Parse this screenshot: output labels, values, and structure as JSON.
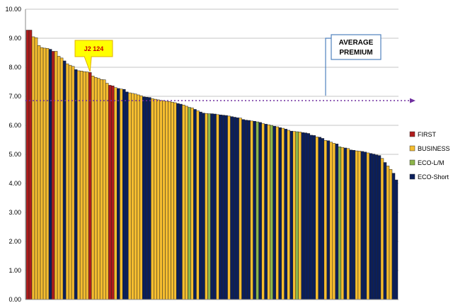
{
  "chart_data": {
    "type": "bar",
    "title": "",
    "xlabel": "",
    "ylabel": "",
    "ylim": [
      0,
      10
    ],
    "yticks": [
      "0.00",
      "1.00",
      "2.00",
      "3.00",
      "4.00",
      "5.00",
      "6.00",
      "7.00",
      "8.00",
      "9.00",
      "10.00"
    ],
    "grid": true,
    "legend_position": "right",
    "colors": {
      "FIRST": "#b01c1c",
      "BUSINESS": "#f5bd2f",
      "ECO-L/M": "#8db54a",
      "ECO-Short": "#0b1f5c"
    },
    "series": [
      {
        "name": "FIRST"
      },
      {
        "name": "BUSINESS"
      },
      {
        "name": "ECO-L/M"
      },
      {
        "name": "ECO-Short"
      }
    ],
    "bars": [
      {
        "value": 9.28,
        "class": "FIRST"
      },
      {
        "value": 9.28,
        "class": "FIRST"
      },
      {
        "value": 9.05,
        "class": "BUSINESS"
      },
      {
        "value": 9.02,
        "class": "BUSINESS"
      },
      {
        "value": 8.75,
        "class": "BUSINESS"
      },
      {
        "value": 8.68,
        "class": "BUSINESS"
      },
      {
        "value": 8.66,
        "class": "BUSINESS"
      },
      {
        "value": 8.65,
        "class": "BUSINESS"
      },
      {
        "value": 8.62,
        "class": "ECO-Short"
      },
      {
        "value": 8.55,
        "class": "FIRST"
      },
      {
        "value": 8.55,
        "class": "BUSINESS"
      },
      {
        "value": 8.38,
        "class": "BUSINESS"
      },
      {
        "value": 8.32,
        "class": "BUSINESS"
      },
      {
        "value": 8.22,
        "class": "ECO-Short"
      },
      {
        "value": 8.12,
        "class": "BUSINESS"
      },
      {
        "value": 8.07,
        "class": "BUSINESS"
      },
      {
        "value": 8.03,
        "class": "BUSINESS"
      },
      {
        "value": 7.92,
        "class": "ECO-Short"
      },
      {
        "value": 7.88,
        "class": "BUSINESS"
      },
      {
        "value": 7.87,
        "class": "BUSINESS"
      },
      {
        "value": 7.85,
        "class": "BUSINESS"
      },
      {
        "value": 7.84,
        "class": "BUSINESS"
      },
      {
        "value": 7.82,
        "class": "FIRST"
      },
      {
        "value": 7.7,
        "class": "BUSINESS"
      },
      {
        "value": 7.65,
        "class": "BUSINESS"
      },
      {
        "value": 7.62,
        "class": "BUSINESS"
      },
      {
        "value": 7.58,
        "class": "BUSINESS"
      },
      {
        "value": 7.57,
        "class": "BUSINESS"
      },
      {
        "value": 7.45,
        "class": "BUSINESS"
      },
      {
        "value": 7.38,
        "class": "FIRST"
      },
      {
        "value": 7.36,
        "class": "FIRST"
      },
      {
        "value": 7.3,
        "class": "BUSINESS"
      },
      {
        "value": 7.27,
        "class": "ECO-Short"
      },
      {
        "value": 7.25,
        "class": "BUSINESS"
      },
      {
        "value": 7.24,
        "class": "ECO-Short"
      },
      {
        "value": 7.15,
        "class": "ECO-Short"
      },
      {
        "value": 7.12,
        "class": "BUSINESS"
      },
      {
        "value": 7.1,
        "class": "BUSINESS"
      },
      {
        "value": 7.08,
        "class": "BUSINESS"
      },
      {
        "value": 7.05,
        "class": "BUSINESS"
      },
      {
        "value": 7.02,
        "class": "BUSINESS"
      },
      {
        "value": 6.98,
        "class": "ECO-Short"
      },
      {
        "value": 6.97,
        "class": "ECO-Short"
      },
      {
        "value": 6.96,
        "class": "ECO-Short"
      },
      {
        "value": 6.92,
        "class": "BUSINESS"
      },
      {
        "value": 6.9,
        "class": "BUSINESS"
      },
      {
        "value": 6.88,
        "class": "BUSINESS"
      },
      {
        "value": 6.86,
        "class": "BUSINESS"
      },
      {
        "value": 6.85,
        "class": "BUSINESS"
      },
      {
        "value": 6.83,
        "class": "BUSINESS"
      },
      {
        "value": 6.82,
        "class": "BUSINESS"
      },
      {
        "value": 6.8,
        "class": "BUSINESS"
      },
      {
        "value": 6.78,
        "class": "BUSINESS"
      },
      {
        "value": 6.75,
        "class": "ECO-Short"
      },
      {
        "value": 6.73,
        "class": "ECO-Short"
      },
      {
        "value": 6.7,
        "class": "BUSINESS"
      },
      {
        "value": 6.66,
        "class": "BUSINESS"
      },
      {
        "value": 6.62,
        "class": "ECO-L/M"
      },
      {
        "value": 6.6,
        "class": "BUSINESS"
      },
      {
        "value": 6.55,
        "class": "ECO-Short"
      },
      {
        "value": 6.5,
        "class": "BUSINESS"
      },
      {
        "value": 6.46,
        "class": "ECO-Short"
      },
      {
        "value": 6.42,
        "class": "ECO-Short"
      },
      {
        "value": 6.41,
        "class": "BUSINESS"
      },
      {
        "value": 6.4,
        "class": "ECO-L/M"
      },
      {
        "value": 6.4,
        "class": "ECO-Short"
      },
      {
        "value": 6.39,
        "class": "ECO-Short"
      },
      {
        "value": 6.37,
        "class": "BUSINESS"
      },
      {
        "value": 6.36,
        "class": "ECO-Short"
      },
      {
        "value": 6.35,
        "class": "ECO-Short"
      },
      {
        "value": 6.34,
        "class": "ECO-Short"
      },
      {
        "value": 6.32,
        "class": "BUSINESS"
      },
      {
        "value": 6.3,
        "class": "ECO-Short"
      },
      {
        "value": 6.28,
        "class": "ECO-Short"
      },
      {
        "value": 6.26,
        "class": "ECO-Short"
      },
      {
        "value": 6.25,
        "class": "BUSINESS"
      },
      {
        "value": 6.2,
        "class": "ECO-Short"
      },
      {
        "value": 6.18,
        "class": "ECO-Short"
      },
      {
        "value": 6.17,
        "class": "ECO-Short"
      },
      {
        "value": 6.15,
        "class": "BUSINESS"
      },
      {
        "value": 6.14,
        "class": "ECO-Short"
      },
      {
        "value": 6.12,
        "class": "ECO-L/M"
      },
      {
        "value": 6.1,
        "class": "ECO-Short"
      },
      {
        "value": 6.06,
        "class": "BUSINESS"
      },
      {
        "value": 6.04,
        "class": "ECO-Short"
      },
      {
        "value": 6.02,
        "class": "BUSINESS"
      },
      {
        "value": 6.0,
        "class": "ECO-L/M"
      },
      {
        "value": 5.97,
        "class": "ECO-Short"
      },
      {
        "value": 5.95,
        "class": "BUSINESS"
      },
      {
        "value": 5.92,
        "class": "ECO-Short"
      },
      {
        "value": 5.9,
        "class": "BUSINESS"
      },
      {
        "value": 5.87,
        "class": "ECO-Short"
      },
      {
        "value": 5.83,
        "class": "BUSINESS"
      },
      {
        "value": 5.8,
        "class": "ECO-Short"
      },
      {
        "value": 5.79,
        "class": "BUSINESS"
      },
      {
        "value": 5.78,
        "class": "ECO-L/M"
      },
      {
        "value": 5.77,
        "class": "BUSINESS"
      },
      {
        "value": 5.75,
        "class": "ECO-Short"
      },
      {
        "value": 5.74,
        "class": "ECO-Short"
      },
      {
        "value": 5.72,
        "class": "ECO-Short"
      },
      {
        "value": 5.66,
        "class": "ECO-Short"
      },
      {
        "value": 5.65,
        "class": "ECO-Short"
      },
      {
        "value": 5.6,
        "class": "BUSINESS"
      },
      {
        "value": 5.59,
        "class": "ECO-Short"
      },
      {
        "value": 5.55,
        "class": "ECO-Short"
      },
      {
        "value": 5.48,
        "class": "BUSINESS"
      },
      {
        "value": 5.47,
        "class": "ECO-Short"
      },
      {
        "value": 5.42,
        "class": "BUSINESS"
      },
      {
        "value": 5.38,
        "class": "BUSINESS"
      },
      {
        "value": 5.36,
        "class": "ECO-Short"
      },
      {
        "value": 5.26,
        "class": "ECO-L/M"
      },
      {
        "value": 5.24,
        "class": "BUSINESS"
      },
      {
        "value": 5.22,
        "class": "ECO-Short"
      },
      {
        "value": 5.2,
        "class": "BUSINESS"
      },
      {
        "value": 5.15,
        "class": "ECO-Short"
      },
      {
        "value": 5.14,
        "class": "ECO-Short"
      },
      {
        "value": 5.12,
        "class": "BUSINESS"
      },
      {
        "value": 5.11,
        "class": "BUSINESS"
      },
      {
        "value": 5.1,
        "class": "ECO-Short"
      },
      {
        "value": 5.08,
        "class": "ECO-Short"
      },
      {
        "value": 5.05,
        "class": "BUSINESS"
      },
      {
        "value": 5.03,
        "class": "ECO-Short"
      },
      {
        "value": 5.01,
        "class": "ECO-Short"
      },
      {
        "value": 4.98,
        "class": "ECO-Short"
      },
      {
        "value": 4.96,
        "class": "ECO-Short"
      },
      {
        "value": 4.86,
        "class": "BUSINESS"
      },
      {
        "value": 4.72,
        "class": "ECO-Short"
      },
      {
        "value": 4.6,
        "class": "BUSINESS"
      },
      {
        "value": 4.48,
        "class": "BUSINESS"
      },
      {
        "value": 4.35,
        "class": "ECO-Short"
      },
      {
        "value": 4.12,
        "class": "ECO-Short"
      }
    ],
    "average_value": 6.85,
    "annotations": {
      "callout": {
        "text": "J2 124",
        "bar_index": 22
      },
      "average_label": [
        "AVERAGE",
        "PREMIUM"
      ]
    }
  }
}
